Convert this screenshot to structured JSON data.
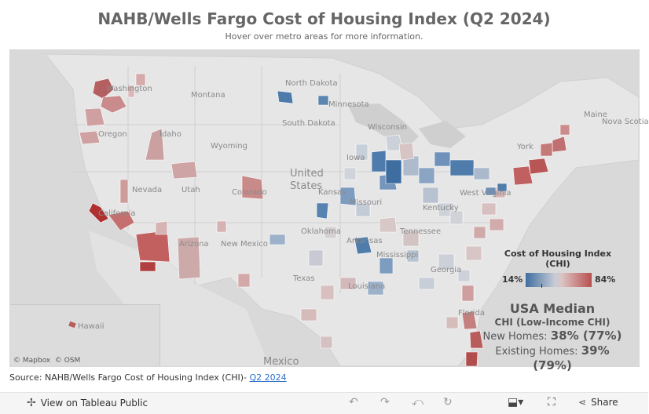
{
  "title": "NAHB/Wells Fargo Cost of Housing Index (Q2 2024)",
  "subtitle": "Hover over metro areas for more information.",
  "map": {
    "state_labels": [
      "North Dakota",
      "Montana",
      "Minnesota",
      "South Dakota",
      "Washington",
      "Oregon",
      "Idaho",
      "Wyoming",
      "Wisconsin",
      "Iowa",
      "Nevada",
      "Utah",
      "Colorado",
      "Arizona",
      "New Mexico",
      "Texas",
      "Oklahoma",
      "Missouri",
      "Kansas",
      "Arkansas",
      "Mississippi",
      "Tennessee",
      "Kentucky",
      "Georgia",
      "Louisiana",
      "West Virginia",
      "Maine",
      "Nova Scotia",
      "California",
      "York",
      "Florida"
    ],
    "country_labels": [
      "United States",
      "Mexico"
    ],
    "inset_label": "Hawaii",
    "attribution": [
      "© Mapbox",
      "© OSM"
    ]
  },
  "legend": {
    "title": "Cost of Housing Index (CHI)",
    "min_label": "14%",
    "max_label": "84%",
    "colors": {
      "low": "#3f6fa0",
      "mid": "#d4d0d4",
      "high": "#b85050"
    }
  },
  "median": {
    "heading": "USA Median",
    "subheading": "CHI (Low-Income CHI)",
    "new_homes_label": "New Homes:",
    "new_homes_value": "38% (77%)",
    "existing_homes_label": "Existing Homes:",
    "existing_homes_value": "39%",
    "existing_homes_value_2": "(79%)"
  },
  "source": {
    "text": "Source: NAHB/Wells Fargo Cost of Housing Index (CHI)- ",
    "link": "Q2 2024"
  },
  "toolbar": {
    "view_label": "View on Tableau Public",
    "share_label": "Share",
    "icons": [
      "undo-icon",
      "redo-icon",
      "revert-icon",
      "refresh-icon",
      "download-icon",
      "fullscreen-icon",
      "share-icon"
    ]
  }
}
